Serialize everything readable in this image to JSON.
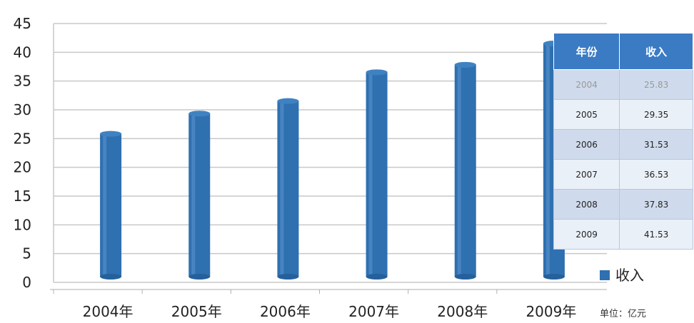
{
  "chart_data": {
    "type": "bar",
    "categories": [
      "2004年",
      "2005年",
      "2006年",
      "2007年",
      "2008年",
      "2009年"
    ],
    "series": [
      {
        "name": "收入",
        "values": [
          25.83,
          29.35,
          31.53,
          36.53,
          37.83,
          41.53
        ]
      }
    ],
    "ylim": [
      0,
      45
    ],
    "yticks": [
      0,
      5,
      10,
      15,
      20,
      25,
      30,
      35,
      40,
      45
    ],
    "grid": true,
    "legend": "right",
    "bar_color": "#2f70b0",
    "unit_note": "单位：亿元"
  },
  "table": {
    "headers": [
      "年份",
      "收入"
    ],
    "rows": [
      [
        "2004",
        "25.83"
      ],
      [
        "2005",
        "29.35"
      ],
      [
        "2006",
        "31.53"
      ],
      [
        "2007",
        "36.53"
      ],
      [
        "2008",
        "37.83"
      ],
      [
        "2009",
        "41.53"
      ]
    ],
    "header_color": "#3a7bc4"
  }
}
